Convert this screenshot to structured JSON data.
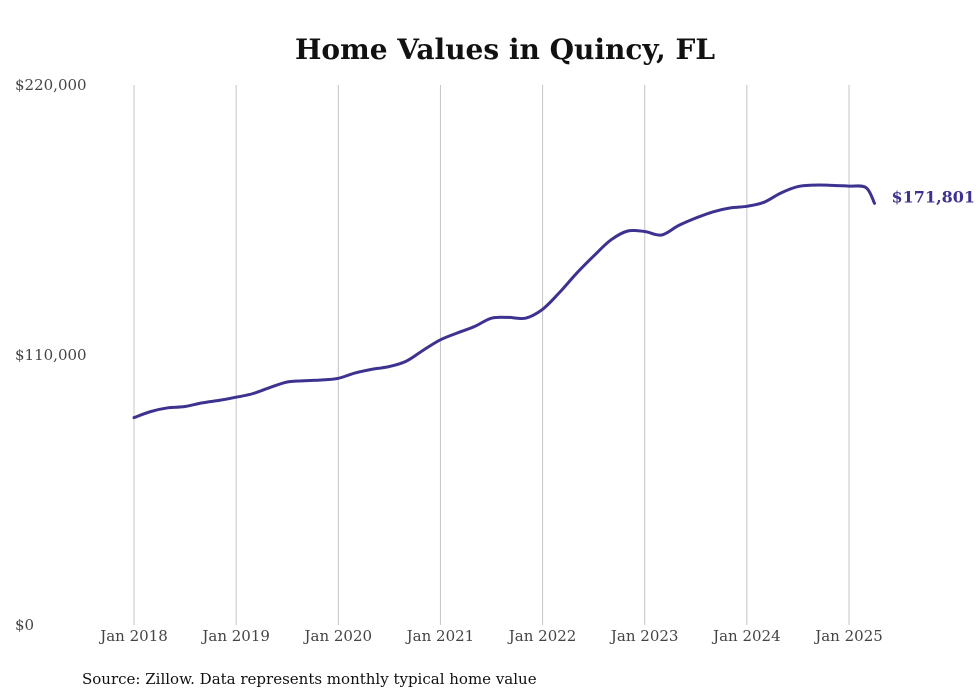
{
  "chart_data": {
    "type": "line",
    "title": "Home Values in Quincy, FL",
    "source": "Source: Zillow. Data represents monthly typical home value",
    "xlabel": "",
    "ylabel": "",
    "ylim": [
      0,
      220000
    ],
    "y_ticks": [
      {
        "value": 0,
        "label": "$0"
      },
      {
        "value": 110000,
        "label": "$110,000"
      },
      {
        "value": 220000,
        "label": "$220,000"
      }
    ],
    "x_ticks": [
      {
        "value": "2018-01",
        "label": "Jan 2018"
      },
      {
        "value": "2019-01",
        "label": "Jan 2019"
      },
      {
        "value": "2020-01",
        "label": "Jan 2020"
      },
      {
        "value": "2021-01",
        "label": "Jan 2021"
      },
      {
        "value": "2022-01",
        "label": "Jan 2022"
      },
      {
        "value": "2023-01",
        "label": "Jan 2023"
      },
      {
        "value": "2024-01",
        "label": "Jan 2024"
      },
      {
        "value": "2025-01",
        "label": "Jan 2025"
      }
    ],
    "grid": "vertical",
    "color": "#3d3290",
    "end_label": "$171,801",
    "series": [
      {
        "points": [
          [
            "2018-01",
            84500
          ],
          [
            "2018-03",
            87000
          ],
          [
            "2018-05",
            88500
          ],
          [
            "2018-07",
            89000
          ],
          [
            "2018-09",
            90500
          ],
          [
            "2018-11",
            91500
          ],
          [
            "2019-01",
            92800
          ],
          [
            "2019-03",
            94300
          ],
          [
            "2019-05",
            96800
          ],
          [
            "2019-07",
            99000
          ],
          [
            "2019-09",
            99500
          ],
          [
            "2019-11",
            99800
          ],
          [
            "2020-01",
            100500
          ],
          [
            "2020-03",
            102700
          ],
          [
            "2020-05",
            104200
          ],
          [
            "2020-07",
            105300
          ],
          [
            "2020-09",
            107500
          ],
          [
            "2020-11",
            112000
          ],
          [
            "2021-01",
            116200
          ],
          [
            "2021-03",
            119000
          ],
          [
            "2021-05",
            121600
          ],
          [
            "2021-07",
            125000
          ],
          [
            "2021-09",
            125300
          ],
          [
            "2021-11",
            125000
          ],
          [
            "2022-01",
            128600
          ],
          [
            "2022-03",
            135500
          ],
          [
            "2022-05",
            143300
          ],
          [
            "2022-07",
            150300
          ],
          [
            "2022-09",
            156800
          ],
          [
            "2022-11",
            160500
          ],
          [
            "2023-01",
            160300
          ],
          [
            "2023-03",
            158900
          ],
          [
            "2023-05",
            162800
          ],
          [
            "2023-07",
            165800
          ],
          [
            "2023-09",
            168300
          ],
          [
            "2023-11",
            169900
          ],
          [
            "2024-01",
            170600
          ],
          [
            "2024-03",
            172200
          ],
          [
            "2024-05",
            176000
          ],
          [
            "2024-07",
            178600
          ],
          [
            "2024-09",
            179200
          ],
          [
            "2024-11",
            179100
          ],
          [
            "2025-01",
            178800
          ],
          [
            "2025-03",
            178200
          ],
          [
            "2025-04",
            171801
          ]
        ]
      }
    ]
  }
}
